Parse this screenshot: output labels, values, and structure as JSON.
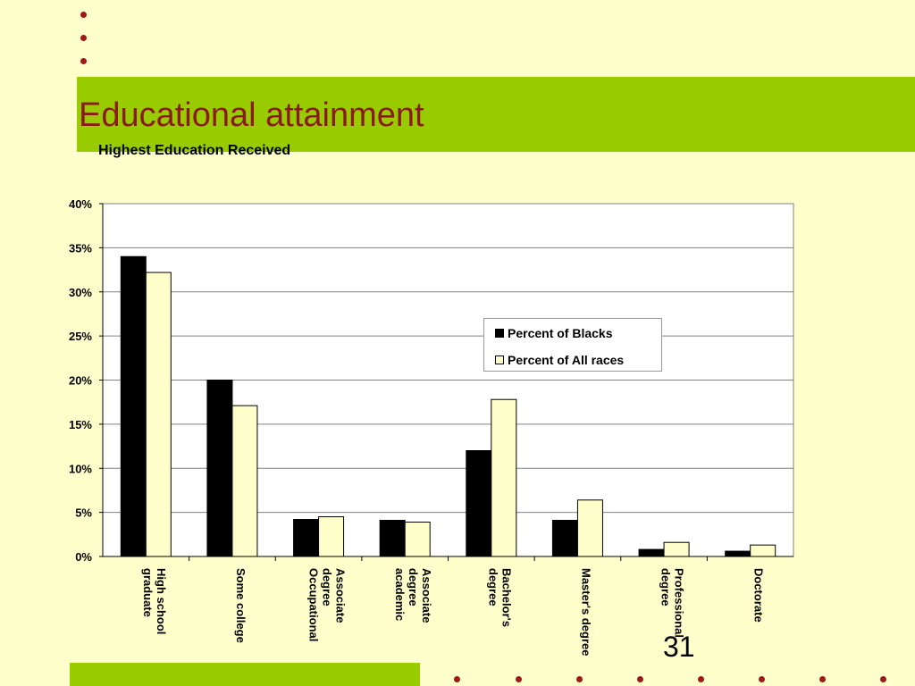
{
  "slide": {
    "title": "Educational attainment",
    "subtitle": "Highest Education Received",
    "page_number": "31"
  },
  "colors": {
    "background": "#FFFFCC",
    "accent_green": "#99CC00",
    "title": "#8B1A1A",
    "bullet": "#A01818",
    "series_blacks": "#000000",
    "series_all": "#FFFFCC"
  },
  "chart_data": {
    "type": "bar",
    "title": "Highest Education Received",
    "categories": [
      [
        "High school",
        "graduate"
      ],
      [
        "Some college"
      ],
      [
        "Associate",
        "degree",
        "Occupational"
      ],
      [
        "Associate",
        "degree",
        "academic"
      ],
      [
        "Bachelor's",
        "degree"
      ],
      [
        "Master's degree"
      ],
      [
        "Professional",
        "degree"
      ],
      [
        "Doctorate"
      ]
    ],
    "series": [
      {
        "name": "Percent of Blacks",
        "values": [
          34,
          20,
          4.2,
          4.1,
          12,
          4.1,
          0.8,
          0.6
        ]
      },
      {
        "name": "Percent of All races",
        "values": [
          32.2,
          17.1,
          4.5,
          3.9,
          17.8,
          6.4,
          1.6,
          1.3
        ]
      }
    ],
    "ylim": [
      0,
      40
    ],
    "yticks": [
      "0%",
      "5%",
      "10%",
      "15%",
      "20%",
      "25%",
      "30%",
      "35%",
      "40%"
    ],
    "grid": true,
    "legend_position": "right"
  }
}
